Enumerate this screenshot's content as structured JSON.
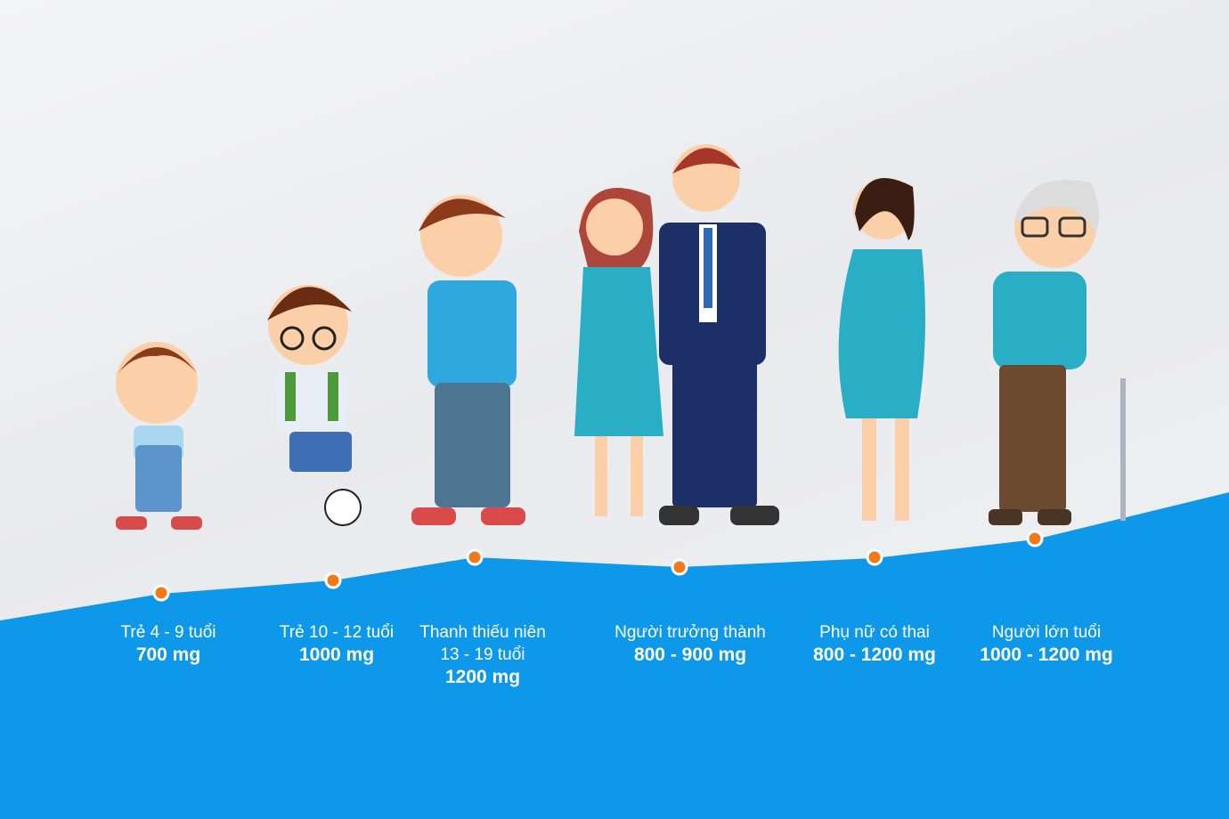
{
  "colors": {
    "blue": "#0e98ea",
    "dot": "#f07a1a",
    "teal": "#2aaec6",
    "navy": "#1c2f66"
  },
  "groups": [
    {
      "age": "Trẻ 4 - 9 tuổi",
      "dose": "700 mg",
      "figure": "toddler"
    },
    {
      "age": "Trẻ 10 - 12 tuổi",
      "dose": "1000 mg",
      "figure": "schoolboy"
    },
    {
      "age": "Thanh thiếu niên",
      "age2": "13 - 19 tuổi",
      "dose": "1200 mg",
      "figure": "teen"
    },
    {
      "age": "Người trưởng thành",
      "dose": "800 - 900 mg",
      "figure": "adult-couple"
    },
    {
      "age": "Phụ nữ có thai",
      "dose": "800 - 1200 mg",
      "figure": "pregnant-woman"
    },
    {
      "age": "Người lớn tuổi",
      "dose": "1000 - 1200 mg",
      "figure": "elderly-man"
    }
  ]
}
